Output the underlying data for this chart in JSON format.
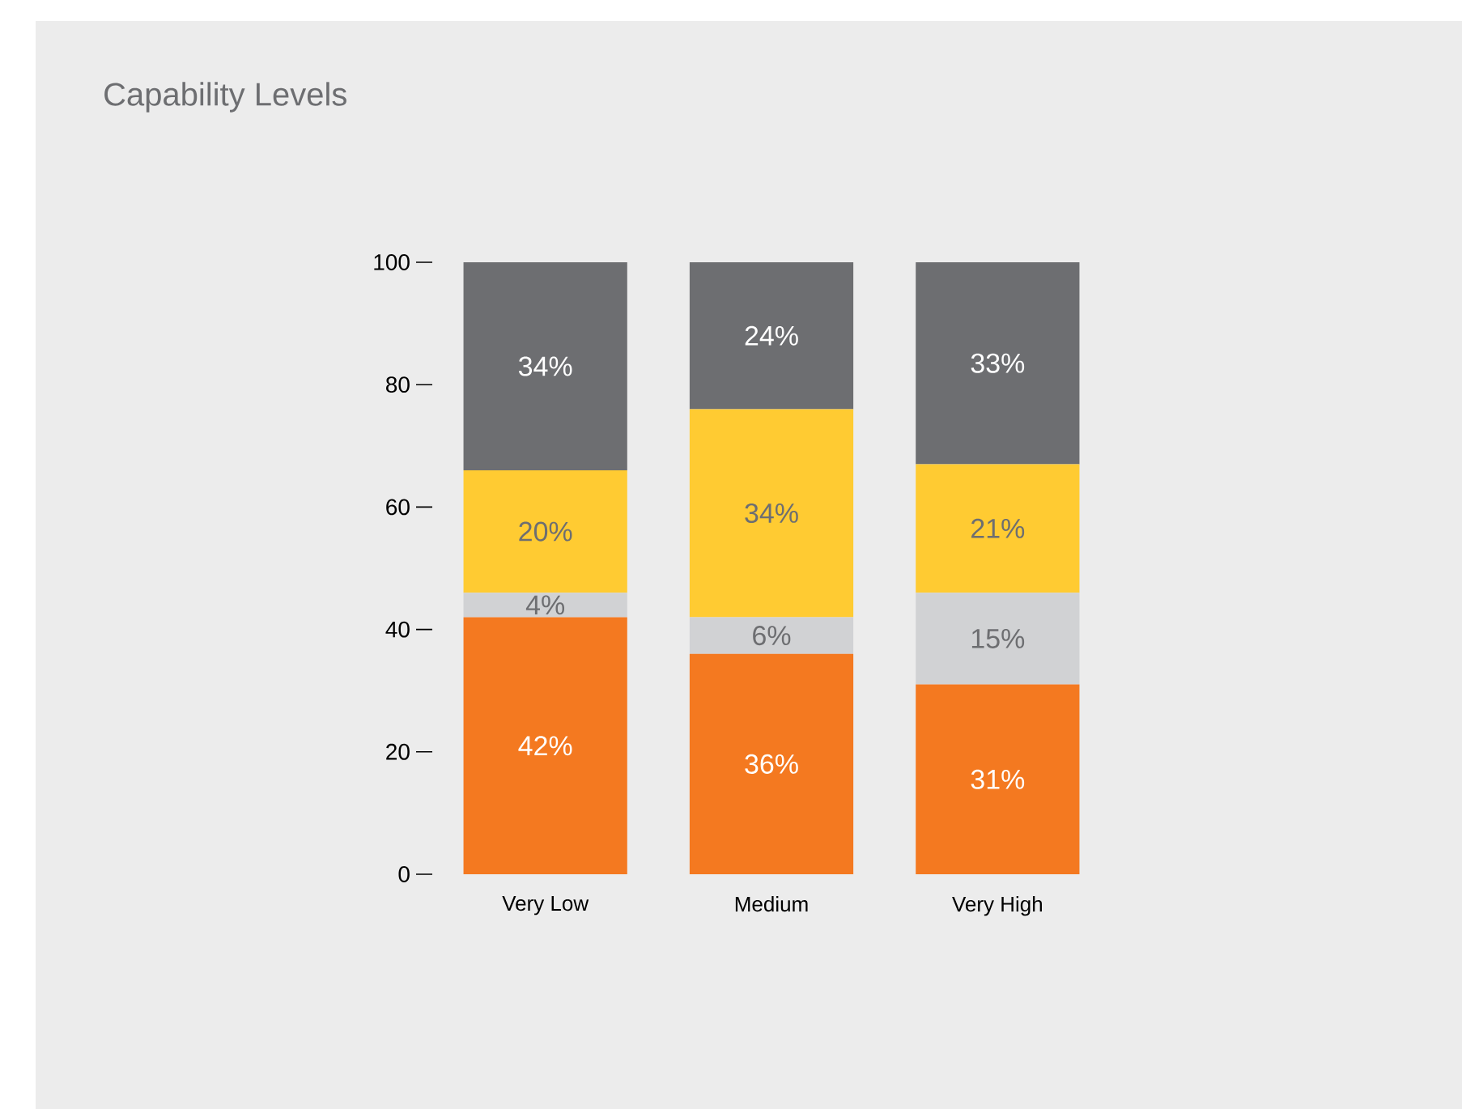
{
  "chart_data": {
    "type": "bar",
    "title": "Capability Levels",
    "stacked": true,
    "categories": [
      "Very Low",
      "Medium",
      "Very High"
    ],
    "series": [
      {
        "color": "#f47920",
        "values": [
          42,
          36,
          31
        ],
        "value_labels": [
          "42%",
          "36%",
          "31%"
        ]
      },
      {
        "color": "#d1d2d4",
        "values": [
          4,
          6,
          15
        ],
        "value_labels": [
          "4%",
          "6%",
          "15%"
        ]
      },
      {
        "color": "#ffcb32",
        "values": [
          20,
          34,
          21
        ],
        "value_labels": [
          "20%",
          "34%",
          "21%"
        ]
      },
      {
        "color": "#6d6e71",
        "values": [
          34,
          24,
          33
        ],
        "value_labels": [
          "34%",
          "24%",
          "33%"
        ]
      }
    ],
    "ylim": [
      0,
      100
    ],
    "yticks": [
      0,
      20,
      40,
      60,
      80,
      100
    ],
    "grid": false
  }
}
